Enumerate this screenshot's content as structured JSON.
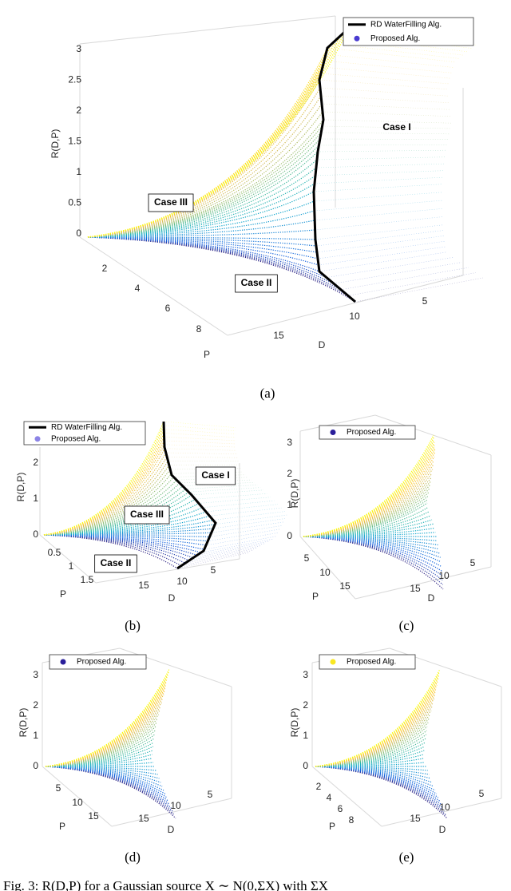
{
  "panels": [
    {
      "label": "(a)",
      "z_label": "R(D,P)",
      "p_label": "P",
      "d_label": "D",
      "z_ticks": [
        0,
        0.5,
        1,
        1.5,
        2,
        2.5,
        3
      ],
      "p_ticks": [
        2,
        4,
        6,
        8
      ],
      "d_ticks": [
        15,
        10,
        5
      ],
      "legend": [
        "RD WaterFilling Alg.",
        "Proposed Alg."
      ],
      "annotations": [
        "Case I",
        "Case III",
        "Case II"
      ]
    },
    {
      "label": "(b)",
      "z_label": "R(D,P)",
      "p_label": "P",
      "d_label": "D",
      "z_ticks": [
        0,
        1,
        2
      ],
      "p_ticks": [
        0.5,
        1,
        1.5
      ],
      "d_ticks": [
        15,
        10,
        5
      ],
      "legend": [
        "RD WaterFilling Alg.",
        "Proposed Alg."
      ],
      "annotations": [
        "Case I",
        "Case III",
        "Case II"
      ]
    },
    {
      "label": "(c)",
      "z_label": "R(D,P)",
      "p_label": "P",
      "d_label": "D",
      "z_ticks": [
        0,
        1,
        2,
        3
      ],
      "p_ticks": [
        5,
        10,
        15
      ],
      "d_ticks": [
        15,
        10,
        5
      ],
      "legend": [
        "Proposed Alg."
      ],
      "annotations": []
    },
    {
      "label": "(d)",
      "z_label": "R(D,P)",
      "p_label": "P",
      "d_label": "D",
      "z_ticks": [
        0,
        1,
        2,
        3
      ],
      "p_ticks": [
        5,
        10,
        15
      ],
      "d_ticks": [
        15,
        10,
        5
      ],
      "legend": [
        "Proposed Alg."
      ],
      "annotations": []
    },
    {
      "label": "(e)",
      "z_label": "R(D,P)",
      "p_label": "P",
      "d_label": "D",
      "z_ticks": [
        0,
        1,
        2,
        3
      ],
      "p_ticks": [
        2,
        4,
        6,
        8
      ],
      "d_ticks": [
        15,
        10,
        5
      ],
      "legend": [
        "Proposed Alg."
      ],
      "annotations": []
    }
  ],
  "caption": "Fig. 3: R(D,P) for a Gaussian source X ∼ N(0,ΣX) with ΣX"
}
